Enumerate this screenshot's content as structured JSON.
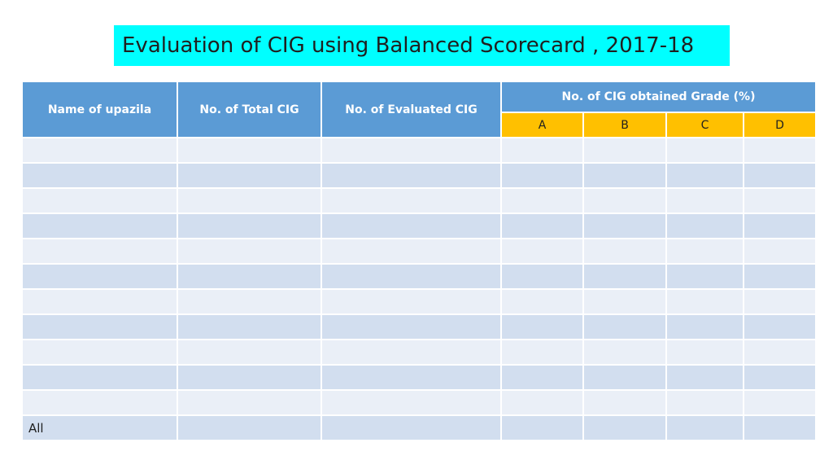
{
  "title": "Evaluation of CIG using Balanced Scorecard , 2017-18",
  "table": {
    "headers": {
      "upazila": "Name of upazila",
      "total_cig": "No. of Total CIG",
      "evaluated_cig": "No. of Evaluated CIG",
      "grade_group": "No. of CIG obtained Grade (%)",
      "grades": [
        "A",
        "B",
        "C",
        "D"
      ]
    },
    "rows": [
      {
        "upazila": "",
        "total_cig": "",
        "evaluated_cig": "",
        "A": "",
        "B": "",
        "C": "",
        "D": ""
      },
      {
        "upazila": "",
        "total_cig": "",
        "evaluated_cig": "",
        "A": "",
        "B": "",
        "C": "",
        "D": ""
      },
      {
        "upazila": "",
        "total_cig": "",
        "evaluated_cig": "",
        "A": "",
        "B": "",
        "C": "",
        "D": ""
      },
      {
        "upazila": "",
        "total_cig": "",
        "evaluated_cig": "",
        "A": "",
        "B": "",
        "C": "",
        "D": ""
      },
      {
        "upazila": "",
        "total_cig": "",
        "evaluated_cig": "",
        "A": "",
        "B": "",
        "C": "",
        "D": ""
      },
      {
        "upazila": "",
        "total_cig": "",
        "evaluated_cig": "",
        "A": "",
        "B": "",
        "C": "",
        "D": ""
      },
      {
        "upazila": "",
        "total_cig": "",
        "evaluated_cig": "",
        "A": "",
        "B": "",
        "C": "",
        "D": ""
      },
      {
        "upazila": "",
        "total_cig": "",
        "evaluated_cig": "",
        "A": "",
        "B": "",
        "C": "",
        "D": ""
      },
      {
        "upazila": "",
        "total_cig": "",
        "evaluated_cig": "",
        "A": "",
        "B": "",
        "C": "",
        "D": ""
      },
      {
        "upazila": "",
        "total_cig": "",
        "evaluated_cig": "",
        "A": "",
        "B": "",
        "C": "",
        "D": ""
      },
      {
        "upazila": "",
        "total_cig": "",
        "evaluated_cig": "",
        "A": "",
        "B": "",
        "C": "",
        "D": ""
      },
      {
        "upazila": "All",
        "total_cig": "",
        "evaluated_cig": "",
        "A": "",
        "B": "",
        "C": "",
        "D": ""
      }
    ]
  },
  "colors": {
    "title_background": "#00ffff",
    "header_background": "#5b9bd5",
    "grade_header_background": "#ffc000",
    "row_light": "#eaeff7",
    "row_dark": "#d2deef"
  }
}
